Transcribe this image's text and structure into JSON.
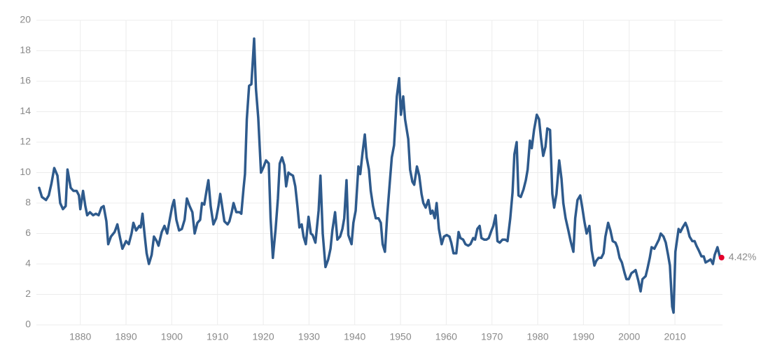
{
  "chart_data": {
    "type": "line",
    "x": [
      1871.0,
      1871.6,
      1872.5,
      1873.1,
      1873.7,
      1874.3,
      1875.0,
      1875.6,
      1876.2,
      1876.8,
      1877.2,
      1877.9,
      1878.5,
      1879.2,
      1879.7,
      1880.0,
      1880.6,
      1881.1,
      1881.5,
      1882.1,
      1882.8,
      1883.4,
      1884.0,
      1884.6,
      1885.1,
      1885.7,
      1886.1,
      1886.7,
      1887.5,
      1888.1,
      1888.7,
      1889.2,
      1890.0,
      1890.6,
      1891.2,
      1891.6,
      1892.2,
      1892.9,
      1893.2,
      1893.6,
      1894.1,
      1894.5,
      1895.0,
      1895.6,
      1896.1,
      1896.7,
      1897.1,
      1897.8,
      1898.4,
      1899.0,
      1899.6,
      1900.1,
      1900.5,
      1901.0,
      1901.6,
      1902.2,
      1902.8,
      1903.3,
      1903.9,
      1904.5,
      1905.0,
      1905.6,
      1906.2,
      1906.6,
      1907.1,
      1907.7,
      1908.0,
      1908.5,
      1909.1,
      1909.7,
      1910.2,
      1910.6,
      1911.1,
      1911.5,
      1912.2,
      1912.6,
      1913.1,
      1913.5,
      1914.1,
      1914.8,
      1915.2,
      1915.7,
      1916.0,
      1916.4,
      1916.9,
      1917.4,
      1918.0,
      1918.4,
      1918.9,
      1919.5,
      1920.1,
      1920.6,
      1921.2,
      1921.6,
      1922.1,
      1922.7,
      1923.2,
      1923.6,
      1924.1,
      1924.6,
      1925.0,
      1925.5,
      1925.9,
      1926.5,
      1927.0,
      1927.5,
      1927.9,
      1928.4,
      1928.8,
      1929.3,
      1929.9,
      1930.4,
      1930.8,
      1931.4,
      1932.1,
      1932.5,
      1933.0,
      1933.6,
      1934.2,
      1934.7,
      1935.1,
      1935.7,
      1936.2,
      1936.8,
      1937.3,
      1937.7,
      1938.2,
      1938.6,
      1939.3,
      1939.7,
      1940.2,
      1940.8,
      1941.2,
      1941.7,
      1942.2,
      1942.6,
      1943.1,
      1943.5,
      1944.0,
      1944.6,
      1945.2,
      1945.7,
      1946.1,
      1946.6,
      1947.1,
      1947.7,
      1948.1,
      1948.6,
      1949.2,
      1949.7,
      1950.1,
      1950.6,
      1951.0,
      1951.7,
      1952.1,
      1952.6,
      1953.0,
      1953.6,
      1954.1,
      1954.6,
      1955.0,
      1955.5,
      1956.1,
      1956.6,
      1957.0,
      1957.5,
      1957.9,
      1958.4,
      1959.0,
      1959.5,
      1960.1,
      1960.7,
      1961.1,
      1961.6,
      1962.2,
      1962.7,
      1963.1,
      1963.7,
      1964.2,
      1964.8,
      1965.3,
      1965.9,
      1966.3,
      1966.8,
      1967.3,
      1967.7,
      1968.3,
      1968.8,
      1969.3,
      1969.9,
      1970.3,
      1970.8,
      1971.2,
      1971.7,
      1972.3,
      1972.9,
      1973.4,
      1974.0,
      1974.5,
      1974.9,
      1975.4,
      1975.8,
      1976.3,
      1976.9,
      1977.4,
      1977.8,
      1978.3,
      1978.7,
      1979.2,
      1979.8,
      1980.3,
      1980.7,
      1981.2,
      1981.7,
      1982.1,
      1982.7,
      1983.2,
      1983.6,
      1984.1,
      1984.7,
      1985.2,
      1985.6,
      1986.1,
      1986.7,
      1987.2,
      1987.8,
      1988.2,
      1988.7,
      1989.3,
      1989.8,
      1990.2,
      1990.7,
      1991.3,
      1991.8,
      1992.4,
      1992.8,
      1993.3,
      1993.9,
      1994.4,
      1994.8,
      1995.4,
      1995.9,
      1996.4,
      1997.0,
      1997.4,
      1997.9,
      1998.4,
      1999.0,
      1999.4,
      1999.9,
      2000.5,
      2001.0,
      2001.4,
      2002.0,
      2002.5,
      2002.9,
      2003.6,
      2004.0,
      2004.5,
      2004.9,
      2005.5,
      2006.0,
      2006.5,
      2006.9,
      2007.5,
      2008.0,
      2008.5,
      2008.9,
      2009.4,
      2009.7,
      2010.1,
      2010.8,
      2011.2,
      2011.7,
      2012.3,
      2012.7,
      2013.2,
      2013.8,
      2014.3,
      2014.7,
      2015.2,
      2015.8,
      2016.3,
      2016.7,
      2017.3,
      2017.8,
      2018.3,
      2018.7,
      2019.3,
      2019.8,
      2020.2
    ],
    "series": [
      {
        "color": "#2e5a8c",
        "values": [
          9.0,
          8.4,
          8.2,
          8.5,
          9.3,
          10.3,
          9.8,
          8.0,
          7.6,
          7.8,
          10.2,
          9.0,
          8.8,
          8.8,
          8.5,
          7.6,
          8.8,
          7.8,
          7.2,
          7.4,
          7.2,
          7.3,
          7.2,
          7.7,
          7.8,
          6.8,
          5.3,
          5.8,
          6.1,
          6.6,
          5.7,
          5.0,
          5.5,
          5.3,
          6.0,
          6.7,
          6.2,
          6.5,
          6.4,
          7.3,
          5.8,
          4.7,
          4.0,
          4.6,
          5.8,
          5.5,
          5.2,
          6.1,
          6.5,
          6.0,
          7.0,
          7.8,
          8.2,
          6.9,
          6.2,
          6.3,
          6.9,
          8.3,
          7.8,
          7.4,
          6.0,
          6.7,
          6.9,
          8.0,
          7.9,
          9.0,
          9.5,
          7.8,
          6.6,
          7.0,
          7.8,
          8.6,
          7.6,
          6.8,
          6.6,
          6.8,
          7.4,
          8.0,
          7.4,
          7.4,
          7.3,
          9.0,
          9.9,
          13.5,
          15.7,
          15.8,
          18.8,
          15.5,
          13.6,
          10.0,
          10.4,
          10.8,
          10.6,
          7.0,
          4.4,
          6.3,
          8.3,
          10.6,
          11.0,
          10.5,
          9.1,
          10.0,
          9.9,
          9.8,
          9.1,
          7.7,
          6.4,
          6.6,
          5.8,
          5.3,
          7.1,
          6.0,
          5.9,
          5.4,
          7.5,
          9.8,
          6.0,
          3.8,
          4.3,
          5.0,
          6.2,
          7.4,
          5.6,
          5.8,
          6.3,
          7.0,
          9.5,
          5.9,
          5.3,
          6.7,
          7.5,
          10.4,
          9.9,
          11.3,
          12.5,
          11.0,
          10.2,
          8.8,
          7.8,
          7.0,
          7.0,
          6.7,
          5.3,
          4.8,
          7.2,
          9.5,
          11.0,
          11.8,
          15.0,
          16.2,
          13.8,
          15.0,
          13.5,
          12.2,
          10.2,
          9.4,
          9.2,
          10.4,
          9.8,
          8.6,
          8.0,
          7.7,
          8.2,
          7.3,
          7.5,
          7.0,
          8.0,
          6.3,
          5.3,
          5.8,
          5.9,
          5.8,
          5.4,
          4.7,
          4.7,
          6.1,
          5.7,
          5.6,
          5.3,
          5.2,
          5.3,
          5.7,
          5.6,
          6.3,
          6.5,
          5.7,
          5.6,
          5.6,
          5.7,
          6.2,
          6.5,
          7.2,
          5.5,
          5.4,
          5.6,
          5.6,
          5.5,
          7.0,
          8.7,
          11.2,
          12.0,
          8.5,
          8.4,
          8.9,
          9.5,
          10.2,
          12.1,
          11.6,
          12.8,
          13.8,
          13.5,
          12.3,
          11.1,
          11.7,
          12.9,
          12.8,
          8.6,
          7.7,
          8.6,
          10.8,
          9.6,
          8.0,
          7.0,
          6.2,
          5.5,
          4.8,
          7.0,
          8.2,
          8.5,
          7.6,
          6.8,
          6.0,
          6.5,
          4.9,
          3.9,
          4.2,
          4.4,
          4.4,
          4.7,
          5.8,
          6.7,
          6.2,
          5.5,
          5.4,
          5.1,
          4.4,
          4.1,
          3.4,
          3.0,
          3.0,
          3.4,
          3.5,
          3.6,
          2.9,
          2.2,
          3.0,
          3.2,
          3.7,
          4.4,
          5.1,
          5.0,
          5.3,
          5.6,
          6.0,
          5.8,
          5.4,
          4.6,
          3.9,
          1.2,
          0.8,
          4.8,
          6.3,
          6.1,
          6.4,
          6.7,
          6.4,
          5.8,
          5.5,
          5.5,
          5.2,
          4.9,
          4.5,
          4.5,
          4.1,
          4.2,
          4.3,
          4.0,
          4.6,
          5.1,
          4.5,
          4.42
        ]
      }
    ],
    "last_label": "4.42%",
    "last_color": "#e4002b",
    "xlim": [
      1870.4,
      2020.4
    ],
    "xticks": [
      1880,
      1890,
      1900,
      1910,
      1920,
      1930,
      1940,
      1950,
      1960,
      1970,
      1980,
      1990,
      2000,
      2010
    ],
    "ylim": [
      0,
      20
    ],
    "yticks": [
      0,
      2,
      4,
      6,
      8,
      10,
      12,
      14,
      16,
      18,
      20
    ],
    "grid": true
  }
}
